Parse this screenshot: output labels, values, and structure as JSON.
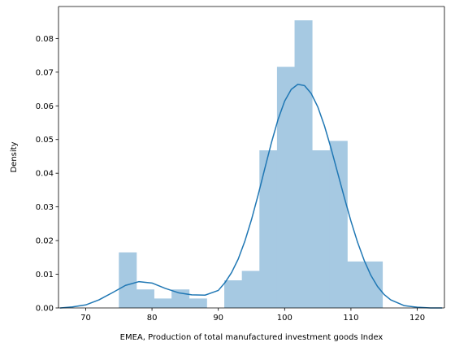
{
  "chart_data": {
    "type": "bar",
    "subtype": "histogram-with-kde",
    "title": "",
    "xlabel": "EMEA, Production of total manufactured investment goods Index",
    "ylabel": "Density",
    "xlim": [
      65.9,
      124.1
    ],
    "ylim": [
      0,
      0.0895
    ],
    "grid": false,
    "xticks": [
      70,
      80,
      90,
      100,
      110,
      120
    ],
    "yticks": [
      0.0,
      0.01,
      0.02,
      0.03,
      0.04,
      0.05,
      0.06,
      0.07,
      0.08
    ],
    "ytick_labels": [
      "0.00",
      "0.01",
      "0.02",
      "0.03",
      "0.04",
      "0.05",
      "0.06",
      "0.07",
      "0.08"
    ],
    "colors": {
      "bars": "#a6c9e2",
      "kde": "#1f77b4"
    },
    "histogram": [
      {
        "x0": 75.0,
        "x1": 77.65,
        "density": 0.0165
      },
      {
        "x0": 77.65,
        "x1": 80.3,
        "density": 0.0055
      },
      {
        "x0": 80.3,
        "x1": 82.95,
        "density": 0.0028
      },
      {
        "x0": 82.95,
        "x1": 85.6,
        "density": 0.0055
      },
      {
        "x0": 85.6,
        "x1": 88.25,
        "density": 0.0028
      },
      {
        "x0": 88.25,
        "x1": 90.9,
        "density": 0.0
      },
      {
        "x0": 90.9,
        "x1": 93.55,
        "density": 0.0082
      },
      {
        "x0": 93.55,
        "x1": 96.2,
        "density": 0.011
      },
      {
        "x0": 96.2,
        "x1": 98.85,
        "density": 0.0468
      },
      {
        "x0": 98.85,
        "x1": 101.5,
        "density": 0.0716
      },
      {
        "x0": 101.5,
        "x1": 104.15,
        "density": 0.0854
      },
      {
        "x0": 104.15,
        "x1": 106.8,
        "density": 0.0468
      },
      {
        "x0": 106.8,
        "x1": 109.45,
        "density": 0.0496
      },
      {
        "x0": 109.45,
        "x1": 112.1,
        "density": 0.0138
      },
      {
        "x0": 112.1,
        "x1": 114.75,
        "density": 0.0138
      }
    ],
    "kde": {
      "x": [
        66.2,
        68,
        70,
        72,
        74,
        76,
        78,
        80,
        82,
        84,
        86,
        88,
        90,
        91,
        92,
        93,
        94,
        95,
        96,
        97,
        98,
        99,
        100,
        101,
        102,
        103,
        104,
        105,
        106,
        107,
        108,
        109,
        110,
        111,
        112,
        113,
        114,
        115,
        116,
        118,
        120,
        122,
        123.7
      ],
      "y": [
        0.0,
        0.0003,
        0.0009,
        0.0024,
        0.0045,
        0.0067,
        0.0078,
        0.0074,
        0.0058,
        0.0045,
        0.0039,
        0.0038,
        0.0052,
        0.0075,
        0.0105,
        0.0145,
        0.0198,
        0.0262,
        0.0335,
        0.0413,
        0.049,
        0.0559,
        0.0614,
        0.0649,
        0.0664,
        0.066,
        0.0637,
        0.0597,
        0.0541,
        0.0474,
        0.0401,
        0.0328,
        0.0258,
        0.0195,
        0.0141,
        0.0097,
        0.0064,
        0.004,
        0.0024,
        0.0007,
        0.0002,
        0.0,
        0.0
      ]
    }
  }
}
